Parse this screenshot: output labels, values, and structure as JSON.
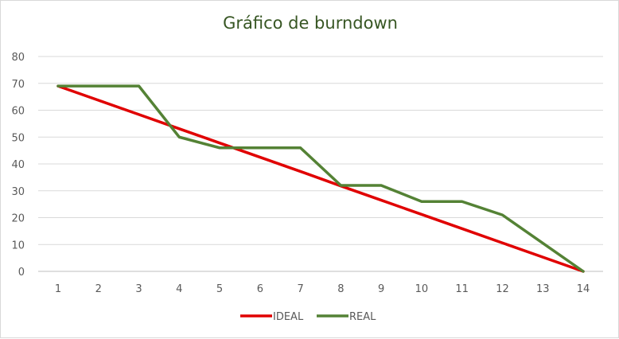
{
  "chart_data": {
    "type": "line",
    "title": "Gráfico de burndown",
    "xlabel": "",
    "ylabel": "",
    "categories": [
      "1",
      "2",
      "3",
      "4",
      "5",
      "6",
      "7",
      "8",
      "9",
      "10",
      "11",
      "12",
      "13",
      "14"
    ],
    "ylim": [
      0,
      80
    ],
    "yticks": [
      "0",
      "10",
      "20",
      "30",
      "40",
      "50",
      "60",
      "70",
      "80"
    ],
    "grid": true,
    "legend_position": "bottom",
    "series": [
      {
        "name": "IDEAL",
        "color": "#e00000",
        "values": [
          69,
          63.7,
          58.4,
          53.1,
          47.8,
          42.5,
          37.2,
          31.8,
          26.5,
          21.2,
          15.9,
          10.6,
          5.3,
          0
        ]
      },
      {
        "name": "REAL",
        "color": "#548235",
        "values": [
          69,
          69,
          69,
          50,
          46,
          46,
          46,
          32,
          32,
          26,
          26,
          21,
          10.5,
          0
        ]
      }
    ]
  }
}
